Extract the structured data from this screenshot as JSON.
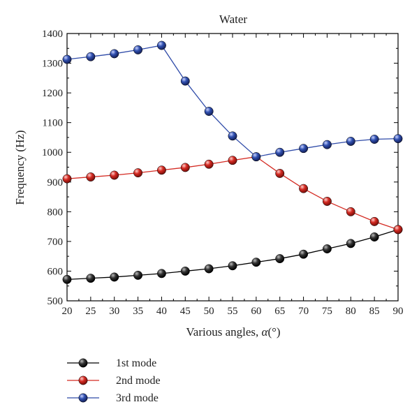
{
  "chart_data": {
    "type": "line",
    "title": "Water",
    "xlabel_prefix": "Various angles, ",
    "xlabel_symbol": "α",
    "xlabel_suffix": "(°)",
    "ylabel": "Frequency (Hz)",
    "xlim": [
      20,
      90
    ],
    "ylim": [
      500,
      1400
    ],
    "xticks": [
      20,
      25,
      30,
      35,
      40,
      45,
      50,
      55,
      60,
      65,
      70,
      75,
      80,
      85,
      90
    ],
    "yticks": [
      500,
      600,
      700,
      800,
      900,
      1000,
      1100,
      1200,
      1300,
      1400
    ],
    "grid": false,
    "legend_position": "bottom-left, below plot",
    "x": [
      20,
      25,
      30,
      35,
      40,
      45,
      50,
      55,
      60,
      65,
      70,
      75,
      80,
      85,
      90
    ],
    "series": [
      {
        "name": "1st mode",
        "color": "#000000",
        "marker_color": "#111111",
        "values": [
          572,
          576,
          580,
          586,
          592,
          600,
          608,
          618,
          630,
          642,
          657,
          675,
          693,
          715,
          740
        ]
      },
      {
        "name": "2nd mode",
        "color": "#d42a22",
        "marker_color": "#d42a22",
        "values": [
          911,
          917,
          923,
          931,
          940,
          949,
          960,
          973,
          985,
          929,
          878,
          835,
          800,
          767,
          740
        ]
      },
      {
        "name": "3rd mode",
        "color": "#2e4aa8",
        "marker_color": "#2e4aa8",
        "values": [
          1313,
          1322,
          1332,
          1345,
          1360,
          1240,
          1138,
          1055,
          985,
          1000,
          1013,
          1026,
          1037,
          1044,
          1046
        ]
      }
    ]
  }
}
